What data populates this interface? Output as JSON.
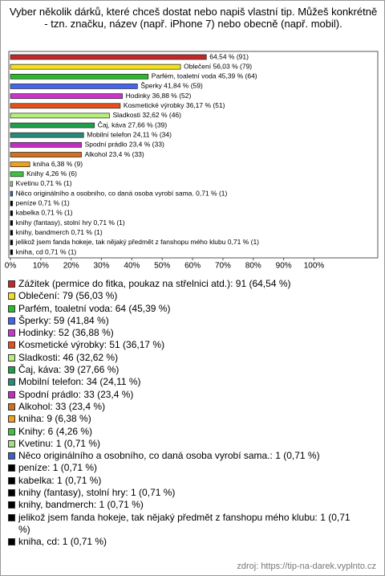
{
  "chart_data": {
    "type": "hbar",
    "title": "Vyber několik dárků, které chceš dostat nebo napiš vlastní tip. Můžeš konkrétně - tzn. značku, název (např. iPhone 7) nebo obecně (např. mobil).",
    "categories": [
      "Zážitek (permice do fitka, poukaz na střelnici atd.): 91 (64,54 %)",
      "Oblečení: 79 (56,03 %)",
      "Parfém, toaletní voda: 64 (45,39 %)",
      "Šperky: 59 (41,84 %)",
      "Hodinky: 52 (36,88 %)",
      "Kosmetické výrobky: 51 (36,17 %)",
      "Sladkosti: 46 (32,62 %)",
      "Čaj, káva: 39 (27,66 %)",
      "Mobilní telefon: 34 (24,11 %)",
      "Spodní prádlo: 33 (23,4 %)",
      "Alkohol: 33 (23,4 %)",
      "kniha: 9 (6,38 %)",
      "Knihy: 6 (4,26 %)",
      "Kvetinu: 1 (0,71 %)",
      "Něco originálního a osobního, co daná osoba vyrobí sama.: 1 (0,71 %)",
      "peníze: 1 (0,71 %)",
      "kabelka: 1 (0,71 %)",
      "knihy (fantasy), stolní hry: 1 (0,71 %)",
      "knihy, bandmerch: 1 (0,71 %)",
      "jelikož jsem fanda hokeje, tak nějaký předmět z fanshopu mého klubu: 1 (0,71 %)",
      "kniha, cd: 1 (0,71 %)"
    ],
    "values": [
      64.54,
      56.03,
      45.39,
      41.84,
      36.88,
      36.17,
      32.62,
      27.66,
      24.11,
      23.4,
      23.4,
      6.38,
      4.26,
      0.71,
      0.71,
      0.71,
      0.71,
      0.71,
      0.71,
      0.71,
      0.71
    ],
    "value_labels": [
      "64,54 % (91)",
      "Oblečení 56,03 % (79)",
      "Parfém, toaletní voda 45,39 % (64)",
      "Šperky 41,84 % (59)",
      "Hodinky 36,88 % (52)",
      "Kosmetické výrobky 36,17 % (51)",
      "Sladkosti 32,62 % (46)",
      "Čaj, káva 27,66 % (39)",
      "Mobilní telefon 24,11 % (34)",
      "Spodní prádlo 23,4 % (33)",
      "Alkohol 23,4 % (33)",
      "kniha 6,38 % (9)",
      "Knihy 4,26 % (6)",
      "Kvetinu 0,71 % (1)",
      "Něco originálního a osobního, co daná osoba vyrobí sama. 0,71 % (1)",
      "peníze 0,71 % (1)",
      "kabelka 0,71 % (1)",
      "knihy (fantasy), stolní hry 0,71 % (1)",
      "knihy, bandmerch 0,71 % (1)",
      "jelikož jsem fanda hokeje, tak nějaký předmět z fanshopu mého klubu 0,71 % (1)",
      "kniha, cd 0,71 % (1)"
    ],
    "colors": [
      "#c0282a",
      "#f2e01e",
      "#2eb82e",
      "#4466ee",
      "#cc33cc",
      "#e8501a",
      "#b6f07a",
      "#1ea04a",
      "#2a8a7a",
      "#c030c0",
      "#d07020",
      "#f0a020",
      "#40c040",
      "#a0e080",
      "#4060c0",
      "#000000",
      "#000000",
      "#000000",
      "#000000",
      "#000000",
      "#000000"
    ],
    "xlim": [
      0,
      121
    ],
    "xticks": [
      {
        "value": 0,
        "label": "0%"
      },
      {
        "value": 10,
        "label": "10%"
      },
      {
        "value": 20,
        "label": "20%"
      },
      {
        "value": 30,
        "label": "30%"
      },
      {
        "value": 40,
        "label": "40%"
      },
      {
        "value": 50,
        "label": "50%"
      },
      {
        "value": 60,
        "label": "60%"
      },
      {
        "value": 70,
        "label": "70%"
      },
      {
        "value": 80,
        "label": "80%"
      },
      {
        "value": 90,
        "label": "90%"
      },
      {
        "value": 100,
        "label": "100%"
      }
    ],
    "source": "zdroj: https://tip-na-darek.vyplnto.cz"
  }
}
